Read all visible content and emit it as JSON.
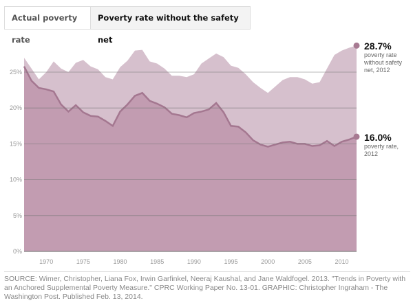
{
  "tabs": [
    {
      "label": "Actual poverty rate",
      "active": false
    },
    {
      "label": "Poverty rate without the safety net",
      "active": true
    }
  ],
  "colors": {
    "without": "#d6c0cd",
    "actual": "#c29cb1",
    "line": "#a47790",
    "grid": "#777777"
  },
  "chart_data": {
    "type": "area",
    "x": [
      1967,
      1968,
      1969,
      1970,
      1971,
      1972,
      1973,
      1974,
      1975,
      1976,
      1977,
      1978,
      1979,
      1980,
      1981,
      1982,
      1983,
      1984,
      1985,
      1986,
      1987,
      1988,
      1989,
      1990,
      1991,
      1992,
      1993,
      1994,
      1995,
      1996,
      1997,
      1998,
      1999,
      2000,
      2001,
      2002,
      2003,
      2004,
      2005,
      2006,
      2007,
      2008,
      2009,
      2010,
      2011,
      2012
    ],
    "series": [
      {
        "name": "Poverty rate without the safety net",
        "values": [
          27.0,
          25.5,
          24.0,
          25.0,
          26.5,
          25.5,
          25.0,
          26.3,
          26.7,
          25.8,
          25.4,
          24.3,
          24.0,
          25.7,
          26.6,
          28.0,
          28.1,
          26.5,
          26.2,
          25.5,
          24.5,
          24.5,
          24.3,
          24.7,
          26.2,
          26.9,
          27.6,
          27.1,
          25.9,
          25.6,
          24.7,
          23.6,
          22.8,
          22.1,
          23.0,
          23.9,
          24.3,
          24.3,
          24.0,
          23.4,
          23.6,
          25.5,
          27.4,
          28.0,
          28.4,
          28.7
        ]
      },
      {
        "name": "Actual poverty rate",
        "values": [
          25.8,
          23.8,
          22.8,
          22.6,
          22.3,
          20.5,
          19.5,
          20.4,
          19.4,
          18.9,
          18.8,
          18.2,
          17.5,
          19.5,
          20.5,
          21.7,
          22.1,
          21.0,
          20.6,
          20.1,
          19.2,
          19.0,
          18.7,
          19.3,
          19.5,
          19.8,
          20.7,
          19.4,
          17.5,
          17.4,
          16.6,
          15.5,
          14.9,
          14.6,
          14.9,
          15.2,
          15.3,
          15.0,
          15.0,
          14.7,
          14.8,
          15.4,
          14.7,
          15.3,
          15.6,
          16.0
        ]
      }
    ],
    "yticks": [
      "0%",
      "5%",
      "10%",
      "15%",
      "20%",
      "25%"
    ],
    "ytick_values": [
      0,
      5,
      10,
      15,
      20,
      25
    ],
    "xticks": [
      1970,
      1975,
      1980,
      1985,
      1990,
      1995,
      2000,
      2005,
      2010
    ],
    "ylim": [
      0,
      30
    ],
    "xlim": [
      1967,
      2012
    ],
    "annotations": [
      {
        "value": "28.7%",
        "text1": "poverty rate",
        "text2": "without safety",
        "text3": "net, 2012"
      },
      {
        "value": "16.0%",
        "text1": "poverty rate,",
        "text2": "2012"
      }
    ]
  },
  "source": "SOURCE: Wimer, Christopher, Liana Fox, Irwin Garfinkel, Neeraj Kaushal, and Jane Waldfogel. 2013. \"Trends in Poverty with an Anchored Supplemental Poverty Measure.\" CPRC Working Paper No. 13-01. GRAPHIC: Christopher Ingraham - The Washington Post. Published Feb. 13, 2014."
}
